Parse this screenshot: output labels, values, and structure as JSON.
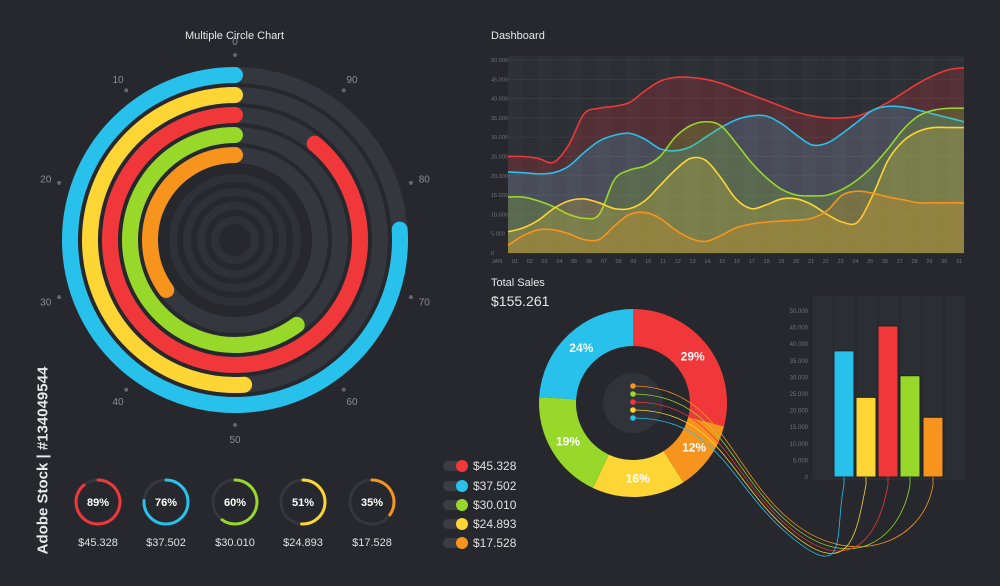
{
  "colors": {
    "background": "#26282d",
    "red": "#f0383a",
    "blue": "#27c1ec",
    "yellow": "#fdd635",
    "green": "#97d82a",
    "orange": "#f7941d",
    "track": "#34373d"
  },
  "circle_chart": {
    "title": "Multiple Circle Chart",
    "scale_labels": [
      "0",
      "10",
      "20",
      "30",
      "40",
      "50",
      "60",
      "70",
      "80",
      "90"
    ],
    "rings": [
      {
        "color": "blue",
        "percent": 76
      },
      {
        "color": "yellow",
        "percent": 51
      },
      {
        "color": "red",
        "percent": 89
      },
      {
        "color": "green",
        "percent": 60
      },
      {
        "color": "orange",
        "percent": 35
      }
    ]
  },
  "mini_donuts": [
    {
      "color": "red",
      "percent": 89,
      "label": "89%",
      "value": "$45.328"
    },
    {
      "color": "blue",
      "percent": 76,
      "label": "76%",
      "value": "$37.502"
    },
    {
      "color": "green",
      "percent": 60,
      "label": "60%",
      "value": "$30.010"
    },
    {
      "color": "yellow",
      "percent": 51,
      "label": "51%",
      "value": "$24.893"
    },
    {
      "color": "orange",
      "percent": 35,
      "label": "35%",
      "value": "$17.528"
    }
  ],
  "legend": [
    {
      "color": "red",
      "value": "$45.328"
    },
    {
      "color": "blue",
      "value": "$37.502"
    },
    {
      "color": "green",
      "value": "$30.010"
    },
    {
      "color": "yellow",
      "value": "$24.893"
    },
    {
      "color": "orange",
      "value": "$17.528"
    }
  ],
  "dashboard": {
    "title": "Dashboard"
  },
  "total_sales": {
    "title": "Total Sales",
    "amount": "$155.261"
  },
  "watermark_id": "Adobe Stock | #134049544",
  "chart_data": [
    {
      "type": "area",
      "ylim": [
        0,
        50000
      ],
      "yticks": [
        "0",
        "5.000",
        "10.000",
        "15.000",
        "20.000",
        "25.000",
        "30.000",
        "35.000",
        "40.000",
        "45.000",
        "50.000"
      ],
      "xticks": [
        "JAN",
        "01",
        "02",
        "03",
        "04",
        "05",
        "06",
        "07",
        "08",
        "09",
        "10",
        "11",
        "12",
        "13",
        "14",
        "15",
        "16",
        "17",
        "18",
        "19",
        "20",
        "21",
        "22",
        "23",
        "24",
        "25",
        "26",
        "27",
        "28",
        "29",
        "30",
        "31"
      ],
      "grid": true,
      "series": [
        {
          "color": "red",
          "values": [
            25000,
            25000,
            24500,
            23500,
            28000,
            36000,
            37500,
            38000,
            39000,
            42000,
            44500,
            45500,
            45500,
            45000,
            44000,
            42500,
            41000,
            39500,
            38000,
            36500,
            35500,
            35000,
            35000,
            35500,
            37000,
            39000,
            41500,
            44000,
            46000,
            47500,
            48000
          ]
        },
        {
          "color": "blue",
          "values": [
            21000,
            20800,
            20500,
            20800,
            22500,
            26000,
            29000,
            30500,
            31000,
            29500,
            27000,
            26500,
            27500,
            30000,
            32500,
            34500,
            35500,
            35500,
            33500,
            30500,
            28000,
            28500,
            31000,
            34000,
            37000,
            38000,
            37800,
            37000,
            36000,
            35000,
            34000
          ]
        },
        {
          "color": "green",
          "values": [
            14500,
            14500,
            13500,
            12000,
            10000,
            9000,
            10000,
            19000,
            21500,
            22500,
            25000,
            30000,
            33000,
            34000,
            33000,
            28500,
            23500,
            19500,
            16500,
            15000,
            14800,
            15000,
            16500,
            19000,
            22500,
            27000,
            32000,
            35500,
            37000,
            37500,
            37500
          ]
        },
        {
          "color": "yellow",
          "values": [
            5500,
            6500,
            8500,
            11500,
            13500,
            14000,
            13000,
            11500,
            11500,
            13500,
            17500,
            21500,
            24500,
            24000,
            19500,
            14000,
            11500,
            12500,
            14000,
            14000,
            12500,
            10000,
            8000,
            8000,
            15000,
            24000,
            29000,
            31500,
            32500,
            32500,
            32500
          ]
        },
        {
          "color": "orange",
          "values": [
            2000,
            4500,
            6000,
            6000,
            5000,
            3500,
            3500,
            7000,
            10000,
            10500,
            9000,
            6000,
            3800,
            3000,
            4500,
            6500,
            7500,
            8000,
            8300,
            8500,
            9000,
            11000,
            15000,
            16000,
            15500,
            14500,
            13800,
            13000,
            13000,
            13000,
            13000
          ]
        }
      ]
    },
    {
      "type": "pie",
      "variant": "donut",
      "slices": [
        {
          "color": "red",
          "value": 29,
          "label": "29%"
        },
        {
          "color": "orange",
          "value": 12,
          "label": "12%"
        },
        {
          "color": "yellow",
          "value": 16,
          "label": "16%"
        },
        {
          "color": "green",
          "value": 19,
          "label": "19%"
        },
        {
          "color": "blue",
          "value": 24,
          "label": "24%"
        }
      ]
    },
    {
      "type": "bar",
      "ylim": [
        0,
        50000
      ],
      "yticks": [
        "0",
        "5.000",
        "10.000",
        "15.000",
        "20.000",
        "25.000",
        "30.000",
        "35.000",
        "40.000",
        "45.000",
        "50.000"
      ],
      "bars": [
        {
          "color": "blue",
          "value": 38000
        },
        {
          "color": "yellow",
          "value": 24000
        },
        {
          "color": "red",
          "value": 45500
        },
        {
          "color": "green",
          "value": 30500
        },
        {
          "color": "orange",
          "value": 18000
        }
      ]
    }
  ]
}
